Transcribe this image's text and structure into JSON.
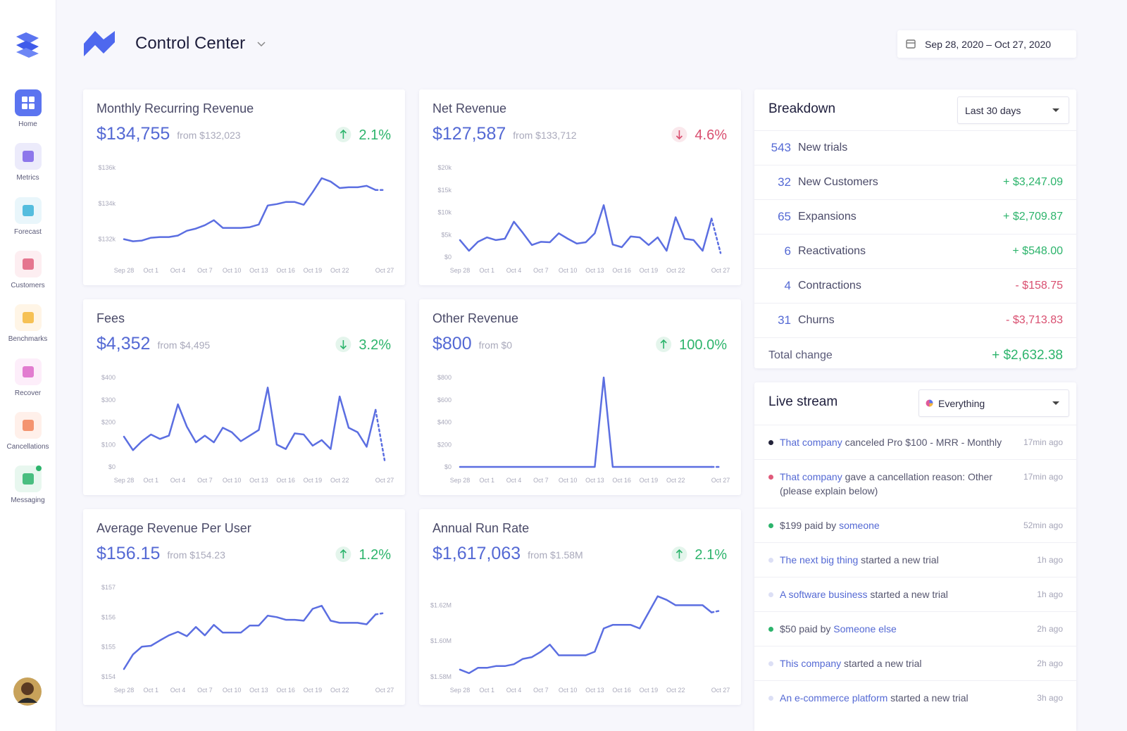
{
  "sidebar": {
    "nav": [
      "Home",
      "Metrics",
      "Forecast",
      "Customers",
      "Benchmarks",
      "Recover",
      "Cancellations",
      "Messaging"
    ]
  },
  "header": {
    "title": "Control Center",
    "date_range": "Sep 28, 2020 – Oct 27, 2020"
  },
  "cards": [
    {
      "title": "Monthly Recurring Revenue",
      "value": "$134,755",
      "from": "from $132,023",
      "change": "2.1%",
      "trend": "up",
      "change_color": "#2db46c",
      "chart": {
        "type": "line",
        "color": "#5b6ee1",
        "categories": [
          "Sep 28",
          null,
          null,
          "Oct 1",
          null,
          null,
          "Oct 4",
          null,
          null,
          "Oct 7",
          null,
          null,
          "Oct 10",
          null,
          null,
          "Oct 13",
          null,
          null,
          "Oct 16",
          null,
          null,
          "Oct 19",
          null,
          null,
          "Oct 22",
          null,
          null,
          null,
          null,
          "Oct 27"
        ],
        "values": [
          132000,
          131880,
          131920,
          132080,
          132120,
          132120,
          132200,
          132470,
          132590,
          132780,
          133060,
          132630,
          132630,
          132630,
          132670,
          132820,
          133880,
          133960,
          134080,
          134080,
          133920,
          134630,
          135410,
          135220,
          134860,
          134900,
          134900,
          134980,
          134750,
          134750
        ],
        "ylim": [
          131000,
          136000
        ],
        "yticks": [
          {
            "value": 132000,
            "label": "$132k"
          },
          {
            "value": 134000,
            "label": "$134k"
          },
          {
            "value": 136000,
            "label": "$136k"
          }
        ]
      }
    },
    {
      "title": "Net Revenue",
      "value": "$127,587",
      "from": "from $133,712",
      "change": "4.6%",
      "trend": "down",
      "change_color": "#d94f70",
      "chart": {
        "type": "line",
        "color": "#5b6ee1",
        "categories": [
          "Sep 28",
          null,
          null,
          "Oct 1",
          null,
          null,
          "Oct 4",
          null,
          null,
          "Oct 7",
          null,
          null,
          "Oct 10",
          null,
          null,
          "Oct 13",
          null,
          null,
          "Oct 16",
          null,
          null,
          "Oct 19",
          null,
          null,
          "Oct 22",
          null,
          null,
          null,
          null,
          "Oct 27"
        ],
        "values": [
          3800,
          1400,
          3400,
          4400,
          3800,
          4100,
          7900,
          5400,
          2700,
          3400,
          3300,
          5300,
          4100,
          3000,
          3300,
          5300,
          11600,
          2800,
          2200,
          4600,
          4400,
          2700,
          4400,
          1400,
          8900,
          4100,
          3800,
          1400,
          8600,
          900
        ],
        "ylim": [
          0,
          20000
        ],
        "yticks": [
          {
            "value": 0,
            "label": "$0"
          },
          {
            "value": 5000,
            "label": "$5k"
          },
          {
            "value": 10000,
            "label": "$10k"
          },
          {
            "value": 15000,
            "label": "$15k"
          },
          {
            "value": 20000,
            "label": "$20k"
          }
        ]
      }
    },
    {
      "title": "Fees",
      "value": "$4,352",
      "from": "from $4,495",
      "change": "3.2%",
      "trend": "down",
      "change_color": "#2db46c",
      "chart": {
        "type": "line",
        "color": "#5b6ee1",
        "categories": [
          "Sep 28",
          null,
          null,
          "Oct 1",
          null,
          null,
          "Oct 4",
          null,
          null,
          "Oct 7",
          null,
          null,
          "Oct 10",
          null,
          null,
          "Oct 13",
          null,
          null,
          "Oct 16",
          null,
          null,
          "Oct 19",
          null,
          null,
          "Oct 22",
          null,
          null,
          null,
          null,
          "Oct 27"
        ],
        "values": [
          135,
          75,
          115,
          145,
          125,
          140,
          280,
          180,
          110,
          140,
          110,
          175,
          155,
          115,
          140,
          165,
          355,
          100,
          80,
          150,
          145,
          95,
          120,
          80,
          315,
          175,
          155,
          90,
          255,
          30
        ],
        "ylim": [
          0,
          400
        ],
        "yticks": [
          {
            "value": 0,
            "label": "$0"
          },
          {
            "value": 100,
            "label": "$100"
          },
          {
            "value": 200,
            "label": "$200"
          },
          {
            "value": 300,
            "label": "$300"
          },
          {
            "value": 400,
            "label": "$400"
          }
        ]
      }
    },
    {
      "title": "Other Revenue",
      "value": "$800",
      "from": "from $0",
      "change": "100.0%",
      "trend": "up",
      "change_color": "#2db46c",
      "chart": {
        "type": "line",
        "color": "#5b6ee1",
        "categories": [
          "Sep 28",
          null,
          null,
          "Oct 1",
          null,
          null,
          "Oct 4",
          null,
          null,
          "Oct 7",
          null,
          null,
          "Oct 10",
          null,
          null,
          "Oct 13",
          null,
          null,
          "Oct 16",
          null,
          null,
          "Oct 19",
          null,
          null,
          "Oct 22",
          null,
          null,
          null,
          null,
          "Oct 27"
        ],
        "values": [
          0,
          0,
          0,
          0,
          0,
          0,
          0,
          0,
          0,
          0,
          0,
          0,
          0,
          0,
          0,
          0,
          800,
          0,
          0,
          0,
          0,
          0,
          0,
          0,
          0,
          0,
          0,
          0,
          0,
          0
        ],
        "ylim": [
          0,
          800
        ],
        "yticks": [
          {
            "value": 0,
            "label": "$0"
          },
          {
            "value": 200,
            "label": "$200"
          },
          {
            "value": 400,
            "label": "$400"
          },
          {
            "value": 600,
            "label": "$600"
          },
          {
            "value": 800,
            "label": "$800"
          }
        ]
      }
    },
    {
      "title": "Average Revenue Per User",
      "value": "$156.15",
      "from": "from $154.23",
      "change": "1.2%",
      "trend": "up",
      "change_color": "#2db46c",
      "chart": {
        "type": "line",
        "color": "#5b6ee1",
        "categories": [
          "Sep 28",
          null,
          null,
          "Oct 1",
          null,
          null,
          "Oct 4",
          null,
          null,
          "Oct 7",
          null,
          null,
          "Oct 10",
          null,
          null,
          "Oct 13",
          null,
          null,
          "Oct 16",
          null,
          null,
          "Oct 19",
          null,
          null,
          "Oct 22",
          null,
          null,
          null,
          null,
          "Oct 27"
        ],
        "values": [
          154.26,
          154.75,
          155.01,
          155.04,
          155.22,
          155.39,
          155.51,
          155.36,
          155.67,
          155.39,
          155.74,
          155.48,
          155.48,
          155.48,
          155.72,
          155.72,
          156.05,
          156.0,
          155.91,
          155.91,
          155.88,
          156.28,
          156.38,
          155.88,
          155.81,
          155.81,
          155.81,
          155.76,
          156.09,
          156.14
        ],
        "ylim": [
          154,
          157
        ],
        "yticks": [
          {
            "value": 154,
            "label": "$154"
          },
          {
            "value": 155,
            "label": "$155"
          },
          {
            "value": 156,
            "label": "$156"
          },
          {
            "value": 157,
            "label": "$157"
          }
        ]
      }
    },
    {
      "title": "Annual Run Rate",
      "value": "$1,617,063",
      "from": "from $1.58M",
      "change": "2.1%",
      "trend": "up",
      "change_color": "#2db46c",
      "chart": {
        "type": "line",
        "color": "#5b6ee1",
        "categories": [
          "Sep 28",
          null,
          null,
          "Oct 1",
          null,
          null,
          "Oct 4",
          null,
          null,
          "Oct 7",
          null,
          null,
          "Oct 10",
          null,
          null,
          "Oct 13",
          null,
          null,
          "Oct 16",
          null,
          null,
          "Oct 19",
          null,
          null,
          "Oct 22",
          null,
          null,
          null,
          null,
          "Oct 27"
        ],
        "values": [
          1584000,
          1582000,
          1585000,
          1585000,
          1586000,
          1586000,
          1587000,
          1590000,
          1591000,
          1594000,
          1598000,
          1592000,
          1592000,
          1592000,
          1592000,
          1594000,
          1607000,
          1609000,
          1609000,
          1609000,
          1607000,
          1616000,
          1625000,
          1623000,
          1620000,
          1620000,
          1620000,
          1620000,
          1616000,
          1617000
        ],
        "ylim": [
          1580000,
          1630000
        ],
        "yticks": [
          {
            "value": 1580000,
            "label": "$1.58M"
          },
          {
            "value": 1600000,
            "label": "$1.60M"
          },
          {
            "value": 1620000,
            "label": "$1.62M"
          }
        ]
      }
    }
  ],
  "breakdown": {
    "title": "Breakdown",
    "period": "Last 30 days",
    "rows": [
      {
        "count": 543,
        "label": "New trials"
      },
      {
        "count": 32,
        "label": "New Customers",
        "amount": "+ $3,247.09",
        "color": "#2db46c"
      },
      {
        "count": 65,
        "label": "Expansions",
        "amount": "+ $2,709.87",
        "color": "#2db46c"
      },
      {
        "count": 6,
        "label": "Reactivations",
        "amount": "+ $548.00",
        "color": "#2db46c"
      },
      {
        "count": 4,
        "label": "Contractions",
        "amount": "- $158.75",
        "color": "#d94f70"
      },
      {
        "count": 31,
        "label": "Churns",
        "amount": "- $3,713.83",
        "color": "#d94f70"
      }
    ],
    "total_label": "Total change",
    "total": "+ $2,632.38",
    "total_color": "#2db46c"
  },
  "live_stream": {
    "title": "Live stream",
    "filter": "Everything",
    "items": [
      {
        "dot": "#23233a",
        "segments": [
          {
            "text": "That company",
            "link": true
          },
          {
            "text": " canceled Pro $100 - MRR - Monthly"
          }
        ],
        "time": "17min ago"
      },
      {
        "dot": "#e05a7a",
        "segments": [
          {
            "text": "That company",
            "link": true
          },
          {
            "text": " gave a cancellation reason: Other (please explain below)"
          }
        ],
        "time": "17min ago"
      },
      {
        "dot": "#2db46c",
        "segments": [
          {
            "text": "$199 paid by "
          },
          {
            "text": "someone",
            "link": true
          }
        ],
        "time": "52min ago"
      },
      {
        "dot": "#dcdff5",
        "segments": [
          {
            "text": "The next big thing",
            "link": true
          },
          {
            "text": " started a new trial"
          }
        ],
        "time": "1h ago"
      },
      {
        "dot": "#dcdff5",
        "segments": [
          {
            "text": "A software business",
            "link": true
          },
          {
            "text": " started a new trial"
          }
        ],
        "time": "1h ago"
      },
      {
        "dot": "#2db46c",
        "segments": [
          {
            "text": "$50 paid by "
          },
          {
            "text": "Someone else",
            "link": true
          }
        ],
        "time": "2h ago"
      },
      {
        "dot": "#dcdff5",
        "segments": [
          {
            "text": "This company",
            "link": true
          },
          {
            "text": " started a new trial"
          }
        ],
        "time": "2h ago"
      },
      {
        "dot": "#dcdff5",
        "segments": [
          {
            "text": "An e-commerce platform",
            "link": true
          },
          {
            "text": " started a new trial"
          }
        ],
        "time": "3h ago"
      }
    ]
  }
}
